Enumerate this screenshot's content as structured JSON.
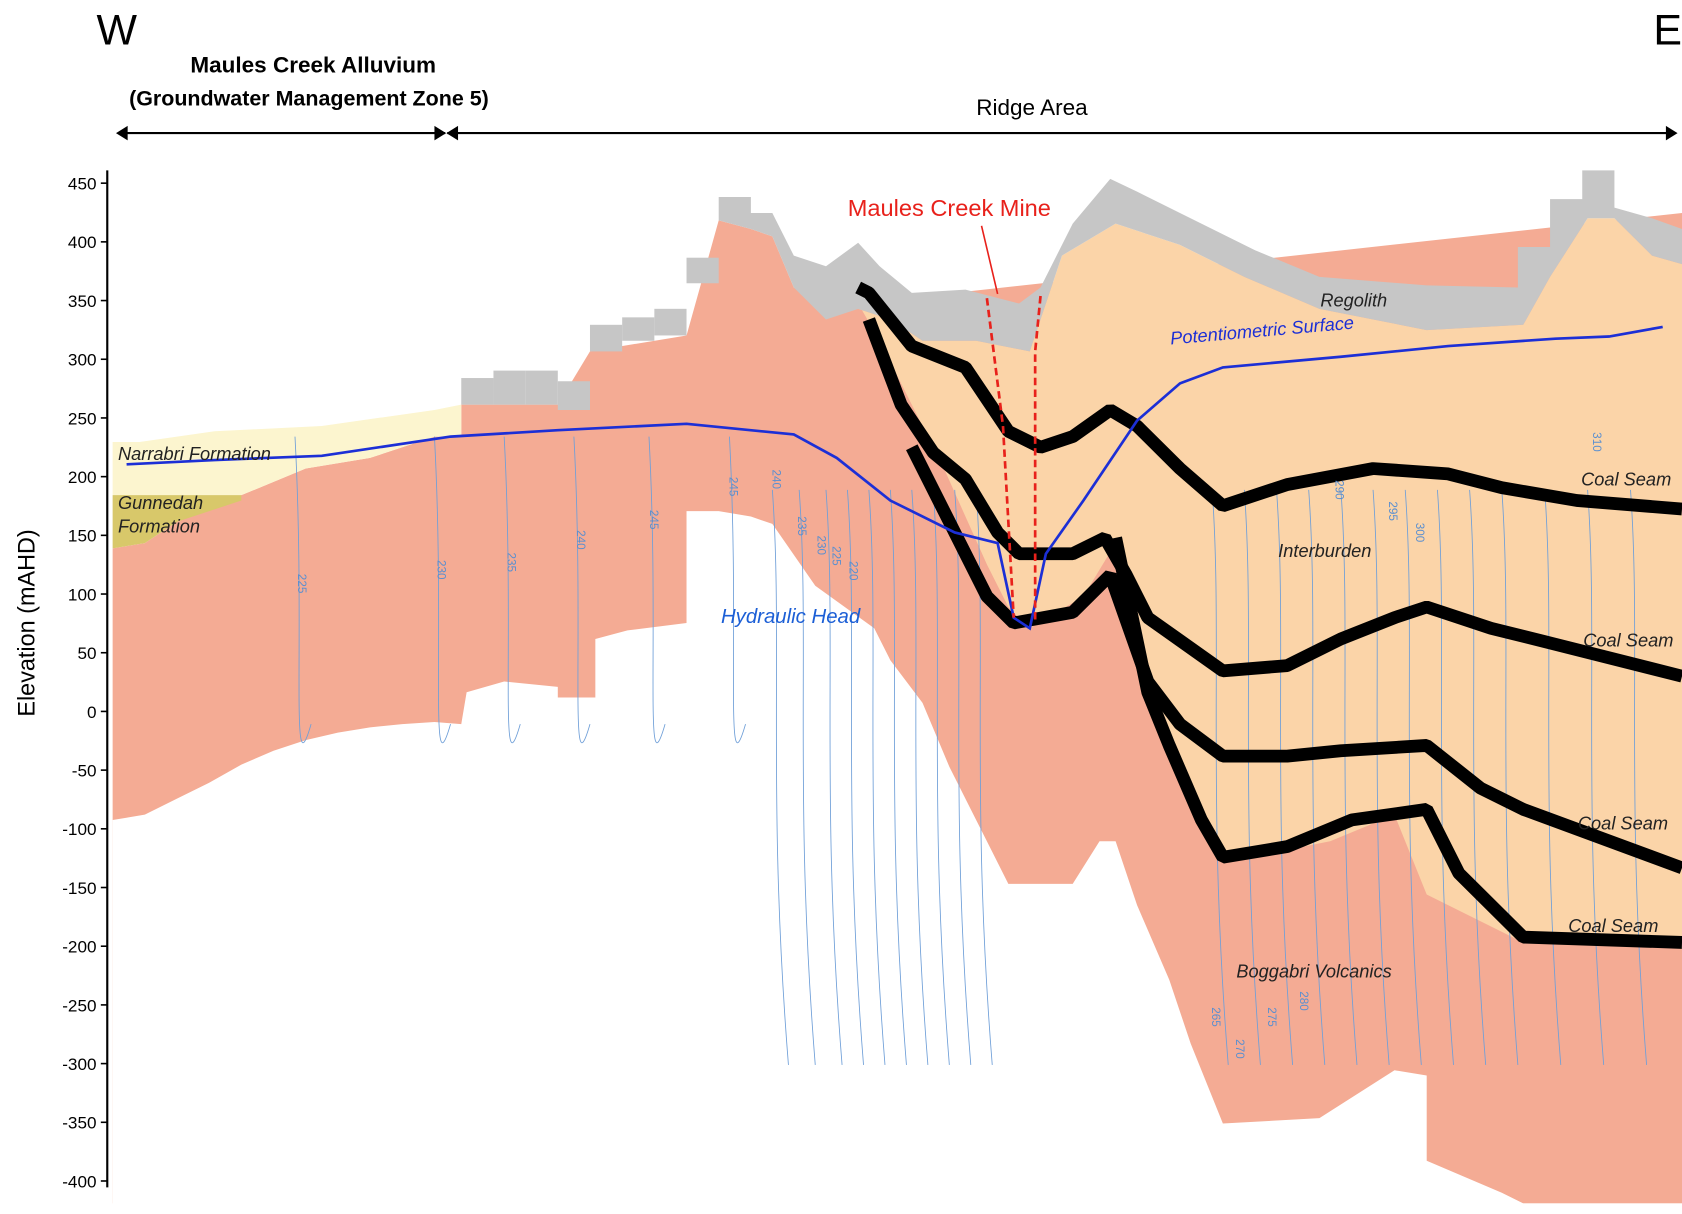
{
  "header": {
    "west": "W",
    "east": "E",
    "alluvium_title": "Maules Creek Alluvium",
    "alluvium_subtitle": "(Groundwater Management Zone 5)",
    "ridge": "Ridge Area"
  },
  "axis": {
    "label": "Elevation (mAHD)",
    "ylim": [
      -400,
      450
    ],
    "yticks": [
      -400,
      -350,
      -300,
      -250,
      -200,
      -150,
      -100,
      -50,
      0,
      50,
      100,
      150,
      200,
      250,
      300,
      350,
      400,
      450
    ]
  },
  "labels": {
    "mine": "Maules Creek Mine",
    "regolith": "Regolith",
    "potentiometric": "Potentiometric Surface",
    "narrabri": "Narrabri Formation",
    "gunnedah": [
      "Gunnedah",
      "Formation"
    ],
    "hydraulic": "Hydraulic Head",
    "coal_seams": [
      "Coal Seam",
      "Coal Seam",
      "Coal Seam",
      "Coal Seam"
    ],
    "interburden": "Interburden",
    "boggabri": "Boggabri Volcanics"
  },
  "contour_labels": [
    "225",
    "230",
    "235",
    "240",
    "245",
    "245",
    "240",
    "235",
    "230",
    "225",
    "220",
    "265",
    "270",
    "275",
    "280",
    "290",
    "295",
    "300",
    "310"
  ]
}
